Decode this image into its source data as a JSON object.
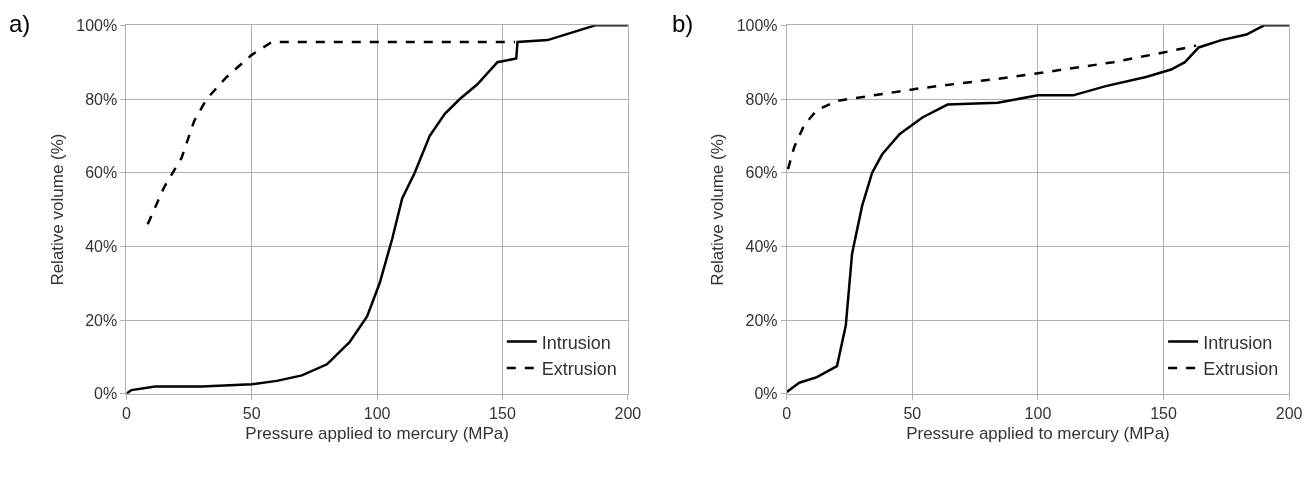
{
  "chart_data": [
    {
      "type": "line",
      "title": "a)",
      "xlabel": "Pressure applied to mercury (MPa)",
      "ylabel": "Relative volume (%)",
      "xlim": [
        0,
        200
      ],
      "xticks": [
        0,
        50,
        100,
        150,
        200
      ],
      "ylim": [
        0,
        100
      ],
      "yticks": [
        {
          "value": 0,
          "label": "0%"
        },
        {
          "value": 20,
          "label": "20%"
        },
        {
          "value": 40,
          "label": "40%"
        },
        {
          "value": 60,
          "label": "60%"
        },
        {
          "value": 80,
          "label": "80%"
        },
        {
          "value": 100,
          "label": "100%"
        }
      ],
      "grid": true,
      "legend": "bottom right",
      "marker": "none",
      "series": [
        {
          "name": "Intrusion",
          "color": "#000000",
          "line_style": "solid",
          "x": [
            0,
            2,
            11.5,
            30,
            50,
            60,
            70,
            80,
            89,
            96,
            101,
            106,
            110,
            115,
            121,
            127,
            133,
            140,
            148,
            155.5,
            156,
            168,
            187,
            200
          ],
          "values": [
            0,
            1,
            2,
            2,
            2.6,
            3.5,
            5,
            8,
            14,
            21,
            30,
            42,
            53,
            60,
            70,
            76,
            80,
            84,
            90,
            91,
            95.5,
            96,
            100,
            100
          ]
        },
        {
          "name": "Extrusion",
          "color": "#000000",
          "line_style": "dashed",
          "x": [
            8.5,
            15,
            22,
            27,
            32,
            40,
            50,
            58,
            100,
            155
          ],
          "values": [
            46,
            56,
            64,
            74,
            80,
            86,
            92,
            95.5,
            95.5,
            95.5
          ]
        }
      ]
    },
    {
      "type": "line",
      "title": "b)",
      "xlabel": "Pressure applied to mercury (MPa)",
      "ylabel": "Relative volume (%)",
      "xlim": [
        0,
        200
      ],
      "xticks": [
        0,
        50,
        100,
        150,
        200
      ],
      "ylim": [
        0,
        100
      ],
      "yticks": [
        {
          "value": 0,
          "label": "0%"
        },
        {
          "value": 20,
          "label": "20%"
        },
        {
          "value": 40,
          "label": "40%"
        },
        {
          "value": 60,
          "label": "60%"
        },
        {
          "value": 80,
          "label": "80%"
        },
        {
          "value": 100,
          "label": "100%"
        }
      ],
      "grid": true,
      "legend": "bottom right",
      "marker": "none",
      "series": [
        {
          "name": "Intrusion",
          "color": "#000000",
          "line_style": "solid",
          "x": [
            0,
            5,
            12,
            20,
            23.5,
            26,
            30,
            34,
            38,
            45,
            54,
            64,
            84,
            100,
            114,
            127,
            143,
            153,
            158.5,
            164,
            173,
            183,
            190,
            200
          ],
          "values": [
            0.5,
            3,
            4.5,
            7.5,
            18.5,
            38,
            51,
            60,
            65,
            70.5,
            75,
            78.5,
            79,
            81,
            81,
            83.5,
            86,
            88,
            90,
            94,
            96,
            97.5,
            100,
            100
          ]
        },
        {
          "name": "Extrusion",
          "color": "#000000",
          "line_style": "dashed",
          "x": [
            0.5,
            3,
            7,
            12,
            20,
            54,
            84,
            100,
            130,
            149,
            163
          ],
          "values": [
            61,
            67,
            73,
            77,
            79.5,
            83,
            85.5,
            87,
            90,
            92.5,
            94.5
          ]
        }
      ]
    }
  ]
}
